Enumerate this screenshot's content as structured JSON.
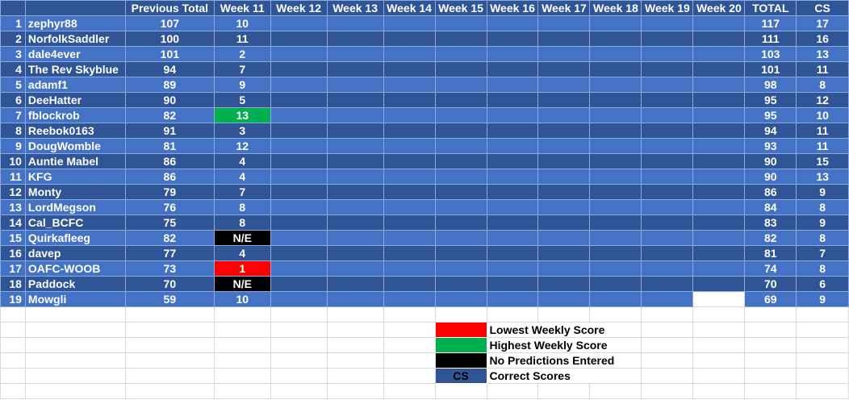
{
  "headers": [
    "",
    "",
    "Previous Total",
    "Week 11",
    "Week 12",
    "Week 13",
    "Week 14",
    "Week 15",
    "Week 16",
    "Week 17",
    "Week 18",
    "Week 19",
    "Week 20",
    "TOTAL",
    "CS"
  ],
  "rows": [
    {
      "rank": "1",
      "name": "zephyr88",
      "prev": "107",
      "wk11": "10",
      "total": "117",
      "cs": "17",
      "mark": ""
    },
    {
      "rank": "2",
      "name": "NorfolkSaddler",
      "prev": "100",
      "wk11": "11",
      "total": "111",
      "cs": "16",
      "mark": ""
    },
    {
      "rank": "3",
      "name": "dale4ever",
      "prev": "101",
      "wk11": "2",
      "total": "103",
      "cs": "13",
      "mark": ""
    },
    {
      "rank": "4",
      "name": "The Rev Skyblue",
      "prev": "94",
      "wk11": "7",
      "total": "101",
      "cs": "11",
      "mark": ""
    },
    {
      "rank": "5",
      "name": "adamf1",
      "prev": "89",
      "wk11": "9",
      "total": "98",
      "cs": "8",
      "mark": ""
    },
    {
      "rank": "6",
      "name": "DeeHatter",
      "prev": "90",
      "wk11": "5",
      "total": "95",
      "cs": "12",
      "mark": ""
    },
    {
      "rank": "7",
      "name": "fblockrob",
      "prev": "82",
      "wk11": "13",
      "total": "95",
      "cs": "10",
      "mark": "green"
    },
    {
      "rank": "8",
      "name": "Reebok0163",
      "prev": "91",
      "wk11": "3",
      "total": "94",
      "cs": "11",
      "mark": ""
    },
    {
      "rank": "9",
      "name": "DougWomble",
      "prev": "81",
      "wk11": "12",
      "total": "93",
      "cs": "11",
      "mark": ""
    },
    {
      "rank": "10",
      "name": "Auntie Mabel",
      "prev": "86",
      "wk11": "4",
      "total": "90",
      "cs": "15",
      "mark": ""
    },
    {
      "rank": "11",
      "name": "KFG",
      "prev": "86",
      "wk11": "4",
      "total": "90",
      "cs": "13",
      "mark": ""
    },
    {
      "rank": "12",
      "name": "Monty",
      "prev": "79",
      "wk11": "7",
      "total": "86",
      "cs": "9",
      "mark": ""
    },
    {
      "rank": "13",
      "name": "LordMegson",
      "prev": "76",
      "wk11": "8",
      "total": "84",
      "cs": "8",
      "mark": ""
    },
    {
      "rank": "14",
      "name": "Cal_BCFC",
      "prev": "75",
      "wk11": "8",
      "total": "83",
      "cs": "9",
      "mark": ""
    },
    {
      "rank": "15",
      "name": "Quirkafleeg",
      "prev": "82",
      "wk11": "N/E",
      "total": "82",
      "cs": "8",
      "mark": "black"
    },
    {
      "rank": "16",
      "name": "davep",
      "prev": "77",
      "wk11": "4",
      "total": "81",
      "cs": "7",
      "mark": ""
    },
    {
      "rank": "17",
      "name": "OAFC-WOOB",
      "prev": "73",
      "wk11": "1",
      "total": "74",
      "cs": "8",
      "mark": "red"
    },
    {
      "rank": "18",
      "name": "Paddock",
      "prev": "70",
      "wk11": "N/E",
      "total": "70",
      "cs": "6",
      "mark": "black"
    },
    {
      "rank": "19",
      "name": "Mowgli",
      "prev": "59",
      "wk11": "10",
      "total": "69",
      "cs": "9",
      "mark": ""
    }
  ],
  "legend": [
    {
      "swatch": "",
      "label": "Lowest Weekly Score",
      "color": "#ff0000"
    },
    {
      "swatch": "",
      "label": "Highest Weekly Score",
      "color": "#00b050"
    },
    {
      "swatch": "N/E",
      "label": "No Predictions Entered",
      "color": "#000000"
    },
    {
      "swatch": "CS",
      "label": "Correct Scores",
      "color": "#2f5597"
    }
  ],
  "colors": {
    "header": "#2f5597",
    "row_light": "#4472c4",
    "row_dark": "#2f5597",
    "lowest": "#ff0000",
    "highest": "#00b050",
    "not_entered": "#000000"
  }
}
